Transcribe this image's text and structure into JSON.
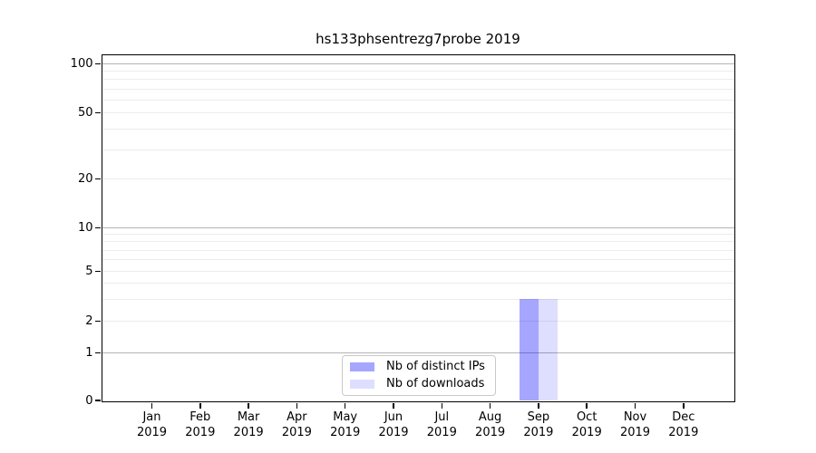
{
  "title": "hs133phsentrezg7probe 2019",
  "chart_data": {
    "type": "bar",
    "title": "hs133phsentrezg7probe 2019",
    "categories": [
      "Jan",
      "Feb",
      "Mar",
      "Apr",
      "May",
      "Jun",
      "Jul",
      "Aug",
      "Sep",
      "Oct",
      "Nov",
      "Dec"
    ],
    "year": "2019",
    "series": [
      {
        "name": "Nb of distinct IPs",
        "color": "rgba(0,0,255,0.35)",
        "hex_over_white": "#a6a6ff",
        "values": [
          0,
          0,
          0,
          0,
          0,
          0,
          0,
          0,
          3,
          0,
          0,
          0
        ]
      },
      {
        "name": "Nb of downloads",
        "color": "rgba(0,0,255,0.13)",
        "hex_over_white": "#dedeff",
        "values": [
          0,
          0,
          0,
          0,
          0,
          0,
          0,
          0,
          3,
          0,
          0,
          0
        ]
      }
    ],
    "y_axis": {
      "scale": "symlog",
      "ticks": [
        0,
        1,
        2,
        5,
        10,
        20,
        50,
        100
      ],
      "major_gridline_values": [
        1,
        10,
        100
      ],
      "minor_gridline_values": [
        2,
        3,
        4,
        5,
        6,
        7,
        8,
        9,
        20,
        30,
        40,
        50,
        60,
        70,
        80,
        90
      ],
      "range": [
        0,
        100
      ]
    },
    "legend": {
      "entries": [
        "Nb of distinct IPs",
        "Nb of downloads"
      ],
      "position": "lower center"
    },
    "colors": {
      "bar_distinct_ips": "#a6a6ff",
      "bar_downloads": "#dedeff",
      "grid_minor": "#ececec",
      "grid_major": "#b4b4b4",
      "axis": "#000000",
      "background": "#ffffff"
    },
    "grid": true
  }
}
